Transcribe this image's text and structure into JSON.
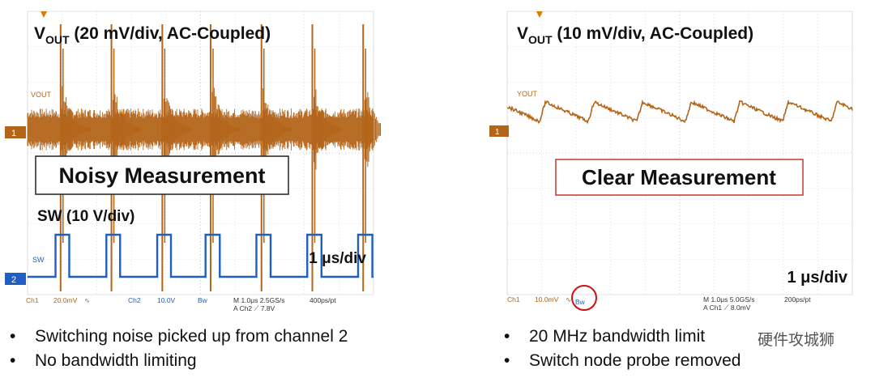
{
  "chart_data": [
    {
      "type": "line",
      "panel": "left",
      "title_parts": {
        "main": "V",
        "sub": "OUT",
        "rest": " (20 mV/div, AC-Coupled)"
      },
      "callout": "Noisy Measurement",
      "callout_color": "#222222",
      "label_sw": "SW (10 V/div)",
      "timebase": "1 μs/div",
      "trace_labels": {
        "ch1": "VOUT",
        "ch2": "SW"
      },
      "markers": {
        "ch1": "1",
        "ch2": "2"
      },
      "status_bar": {
        "ch1": "Ch1",
        "ch1_scale": "20.0mV",
        "ch1_sym": "∿",
        "ch2": "Ch2",
        "ch2_scale": "10.0V",
        "bw": "Bw",
        "timing": "M 1.0μs 2.5GS/s",
        "trigger": "A Ch2 ⟋ 7.8V",
        "rate": "400ps/pt"
      },
      "series": [
        {
          "color": "#b3651a",
          "spike_times_us": [
            0.65,
            1.65,
            2.65,
            3.6,
            4.6,
            5.6,
            6.6
          ]
        },
        {
          "color": "#1f5fc4",
          "low_V": 0,
          "high_V": 10,
          "pulses_us": [
            [
              0.55,
              0.82
            ],
            [
              1.55,
              1.82
            ],
            [
              2.55,
              2.82
            ],
            [
              3.5,
              3.78
            ],
            [
              4.5,
              4.78
            ],
            [
              5.5,
              5.78
            ],
            [
              6.5,
              6.78
            ]
          ]
        }
      ],
      "grid": true,
      "colors": {
        "ch1": "#b3651a",
        "ch2": "#1f5fc4",
        "grid": "#c8c8c8"
      }
    },
    {
      "type": "line",
      "panel": "right",
      "title_parts": {
        "main": "V",
        "sub": "OUT",
        "rest": " (10 mV/div, AC-Coupled)"
      },
      "callout": "Clear Measurement",
      "callout_color": "#c0392b",
      "timebase": "1 μs/div",
      "trace_labels": {
        "ch1": "YOUT"
      },
      "markers": {
        "ch1": "1"
      },
      "status_bar": {
        "ch1": "Ch1",
        "ch1_scale": "10.0mV",
        "ch1_sym": "∿",
        "bw": "Bw",
        "timing": "M 1.0μs 5.0GS/s",
        "trigger": "A Ch1 ⟋ 8.0mV",
        "rate": "200ps/pt"
      },
      "series": [
        {
          "color": "#b3651a",
          "ripple_period_us": 0.97,
          "ripple_pp_mV": 12
        }
      ],
      "grid": true,
      "colors": {
        "ch1": "#b3651a",
        "grid": "#c8c8c8",
        "highlight": "#cc1111"
      }
    }
  ],
  "bullets_left": [
    "Switching noise picked up from channel 2",
    "No bandwidth limiting"
  ],
  "bullets_right": [
    "20 MHz bandwidth limit",
    "Switch node probe removed"
  ],
  "watermark": "硬件攻城狮"
}
